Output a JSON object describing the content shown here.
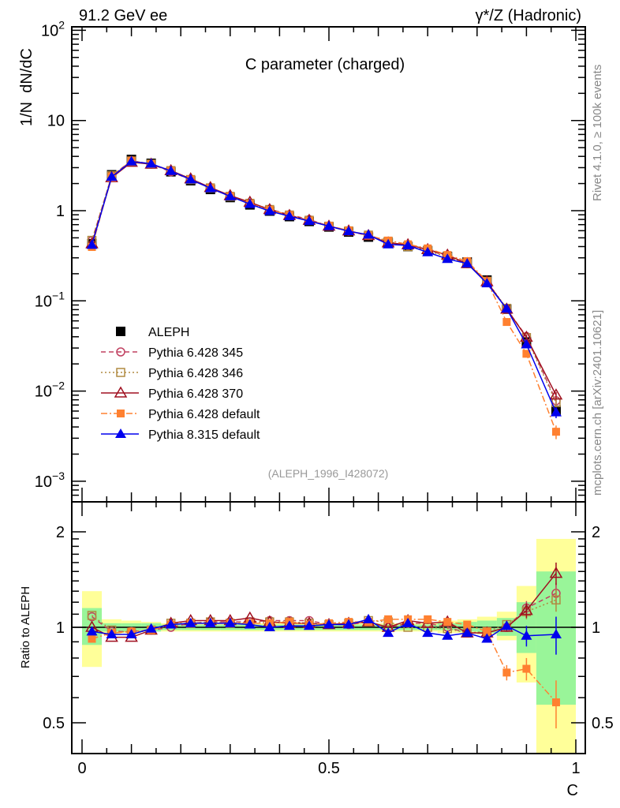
{
  "header": {
    "left": "91.2 GeV ee",
    "right": "γ*/Z (Hadronic)",
    "plot_title": "C parameter (charged)",
    "analysis_id": "(ALEPH_1996_I428072)",
    "side_top": "Rivet 4.1.0, ≥ 100k events",
    "side_bottom": "mcplots.cern.ch [arXiv:2401.10621]"
  },
  "chart_data": [
    {
      "type": "line",
      "title": "C parameter (charged)",
      "xlabel": "C",
      "ylabel": "1/N  dN/dC",
      "yscale": "log",
      "xlim": [
        -0.02,
        1.02
      ],
      "ylim": [
        0.00058,
        108
      ],
      "xticks": [
        "0",
        "0.5",
        "1"
      ],
      "xtick_values": [
        0,
        0.5,
        1
      ],
      "yticks": [
        {
          "value": 100,
          "base": "10",
          "exp": "2"
        },
        {
          "value": 10,
          "base": "10",
          "exp": ""
        },
        {
          "value": 1,
          "base": "1",
          "exp": ""
        },
        {
          "value": 0.1,
          "base": "10",
          "exp": "−1"
        },
        {
          "value": 0.01,
          "base": "10",
          "exp": "−2"
        },
        {
          "value": 0.001,
          "base": "10",
          "exp": "−3"
        }
      ],
      "x": [
        0.02,
        0.06,
        0.1,
        0.14,
        0.18,
        0.22,
        0.26,
        0.3,
        0.34,
        0.38,
        0.42,
        0.46,
        0.5,
        0.54,
        0.58,
        0.62,
        0.66,
        0.7,
        0.74,
        0.78,
        0.82,
        0.86,
        0.9,
        0.96
      ],
      "bin_edges": [
        0,
        0.04,
        0.08,
        0.12,
        0.16,
        0.2,
        0.24,
        0.28,
        0.32,
        0.36,
        0.4,
        0.44,
        0.48,
        0.52,
        0.56,
        0.6,
        0.64,
        0.68,
        0.72,
        0.76,
        0.8,
        0.84,
        0.88,
        0.92,
        1.0
      ],
      "data": {
        "name": "ALEPH",
        "color": "#000000",
        "values": [
          0.43,
          2.5,
          3.7,
          3.35,
          2.7,
          2.15,
          1.72,
          1.4,
          1.16,
          0.99,
          0.86,
          0.76,
          0.66,
          0.58,
          0.51,
          0.44,
          0.4,
          0.36,
          0.31,
          0.27,
          0.17,
          0.081,
          0.035,
          0.0061
        ]
      },
      "legend_position": "middle-left",
      "series": [
        {
          "name": "Pythia 6.428 345",
          "color": "#c04060",
          "marker": "open-circle",
          "dash": "6,4",
          "ratio": [
            1.08,
            0.97,
            0.97,
            0.98,
            1.0,
            1.03,
            1.04,
            1.04,
            1.04,
            1.05,
            1.05,
            1.05,
            1.02,
            1.02,
            1.04,
            1.0,
            1.03,
            1.03,
            1.0,
            0.96,
            0.96,
            1.0,
            1.15,
            1.28
          ],
          "ratio_err": [
            0,
            0,
            0,
            0,
            0,
            0,
            0,
            0,
            0,
            0,
            0,
            0,
            0,
            0,
            0,
            0,
            0,
            0,
            0,
            0,
            0.02,
            0.03,
            0.06,
            0.1
          ]
        },
        {
          "name": "Pythia 6.428 346",
          "color": "#b08a40",
          "marker": "open-square",
          "dash": "2,3",
          "ratio": [
            1.09,
            0.98,
            0.96,
            0.98,
            1.03,
            1.03,
            1.04,
            1.03,
            1.04,
            1.04,
            1.04,
            1.03,
            1.02,
            1.03,
            1.05,
            1.04,
            1.0,
            1.0,
            0.99,
            0.96,
            0.97,
            1.02,
            1.12,
            1.22
          ],
          "ratio_err": [
            0,
            0,
            0,
            0,
            0,
            0,
            0,
            0,
            0,
            0,
            0,
            0,
            0,
            0,
            0,
            0,
            0,
            0,
            0,
            0,
            0.02,
            0.03,
            0.06,
            0.1
          ]
        },
        {
          "name": "Pythia 6.428 370",
          "color": "#a01020",
          "marker": "open-triangle",
          "dash": "",
          "ratio": [
            1.0,
            0.93,
            0.93,
            0.98,
            1.03,
            1.05,
            1.05,
            1.05,
            1.07,
            1.04,
            1.03,
            1.03,
            1.02,
            1.03,
            1.04,
            1.0,
            1.05,
            1.03,
            1.04,
            0.96,
            0.96,
            1.0,
            1.13,
            1.48
          ],
          "ratio_err": [
            0,
            0,
            0,
            0,
            0,
            0,
            0,
            0,
            0,
            0,
            0,
            0,
            0,
            0,
            0,
            0,
            0,
            0,
            0,
            0,
            0.02,
            0.03,
            0.06,
            0.12
          ]
        },
        {
          "name": "Pythia 6.428 default",
          "color": "#ff8030",
          "marker": "filled-square",
          "dash": "8,3,2,3",
          "ratio": [
            0.92,
            0.96,
            0.97,
            0.98,
            1.02,
            1.03,
            1.03,
            1.03,
            1.03,
            1.03,
            1.04,
            1.02,
            1.03,
            1.04,
            1.04,
            1.06,
            1.06,
            1.06,
            1.04,
            1.02,
            0.97,
            0.72,
            0.74,
            0.58
          ],
          "ratio_err": [
            0,
            0,
            0,
            0,
            0,
            0,
            0,
            0,
            0,
            0,
            0,
            0,
            0,
            0,
            0,
            0,
            0,
            0,
            0,
            0,
            0.02,
            0.04,
            0.06,
            0.1
          ]
        },
        {
          "name": "Pythia 8.315 default",
          "color": "#0000ee",
          "marker": "filled-triangle",
          "dash": "",
          "ratio": [
            0.97,
            0.95,
            0.95,
            0.99,
            1.02,
            1.03,
            1.03,
            1.03,
            1.02,
            1.0,
            1.01,
            1.01,
            1.02,
            1.02,
            1.06,
            0.96,
            1.03,
            0.96,
            0.94,
            0.96,
            0.92,
            1.01,
            0.94,
            0.95
          ],
          "ratio_err": [
            0,
            0,
            0,
            0,
            0,
            0,
            0,
            0,
            0,
            0,
            0,
            0,
            0,
            0,
            0,
            0,
            0,
            0,
            0,
            0,
            0.02,
            0.03,
            0.07,
            0.13
          ]
        }
      ]
    },
    {
      "type": "line",
      "ylabel": "Ratio to ALEPH",
      "xlabel": "C",
      "yscale": "log",
      "ylim": [
        0.4,
        2.5
      ],
      "yticks": [
        "0.5",
        "1",
        "2"
      ],
      "ytick_values": [
        0.5,
        1,
        2
      ],
      "band_inner_color": "#99f599",
      "band_outer_color": "#ffff99",
      "band_inner": [
        [
          0.88,
          1.15
        ],
        [
          0.97,
          1.03
        ],
        [
          0.97,
          1.03
        ],
        [
          0.97,
          1.03
        ],
        [
          0.98,
          1.02
        ],
        [
          0.98,
          1.02
        ],
        [
          0.98,
          1.02
        ],
        [
          0.98,
          1.02
        ],
        [
          0.98,
          1.02
        ],
        [
          0.98,
          1.02
        ],
        [
          0.98,
          1.02
        ],
        [
          0.98,
          1.02
        ],
        [
          0.98,
          1.02
        ],
        [
          0.98,
          1.02
        ],
        [
          0.98,
          1.02
        ],
        [
          0.98,
          1.02
        ],
        [
          0.98,
          1.02
        ],
        [
          0.98,
          1.02
        ],
        [
          0.98,
          1.03
        ],
        [
          0.97,
          1.04
        ],
        [
          0.96,
          1.05
        ],
        [
          0.94,
          1.07
        ],
        [
          0.83,
          1.2
        ],
        [
          0.57,
          1.5
        ]
      ],
      "band_outer": [
        [
          0.75,
          1.3
        ],
        [
          0.95,
          1.06
        ],
        [
          0.96,
          1.05
        ],
        [
          0.97,
          1.04
        ],
        [
          0.97,
          1.03
        ],
        [
          0.97,
          1.03
        ],
        [
          0.97,
          1.03
        ],
        [
          0.97,
          1.03
        ],
        [
          0.97,
          1.03
        ],
        [
          0.97,
          1.03
        ],
        [
          0.97,
          1.03
        ],
        [
          0.97,
          1.03
        ],
        [
          0.97,
          1.03
        ],
        [
          0.97,
          1.03
        ],
        [
          0.97,
          1.03
        ],
        [
          0.97,
          1.03
        ],
        [
          0.97,
          1.03
        ],
        [
          0.97,
          1.03
        ],
        [
          0.96,
          1.05
        ],
        [
          0.96,
          1.06
        ],
        [
          0.95,
          1.08
        ],
        [
          0.91,
          1.12
        ],
        [
          0.67,
          1.35
        ],
        [
          0.4,
          1.9
        ]
      ]
    }
  ]
}
